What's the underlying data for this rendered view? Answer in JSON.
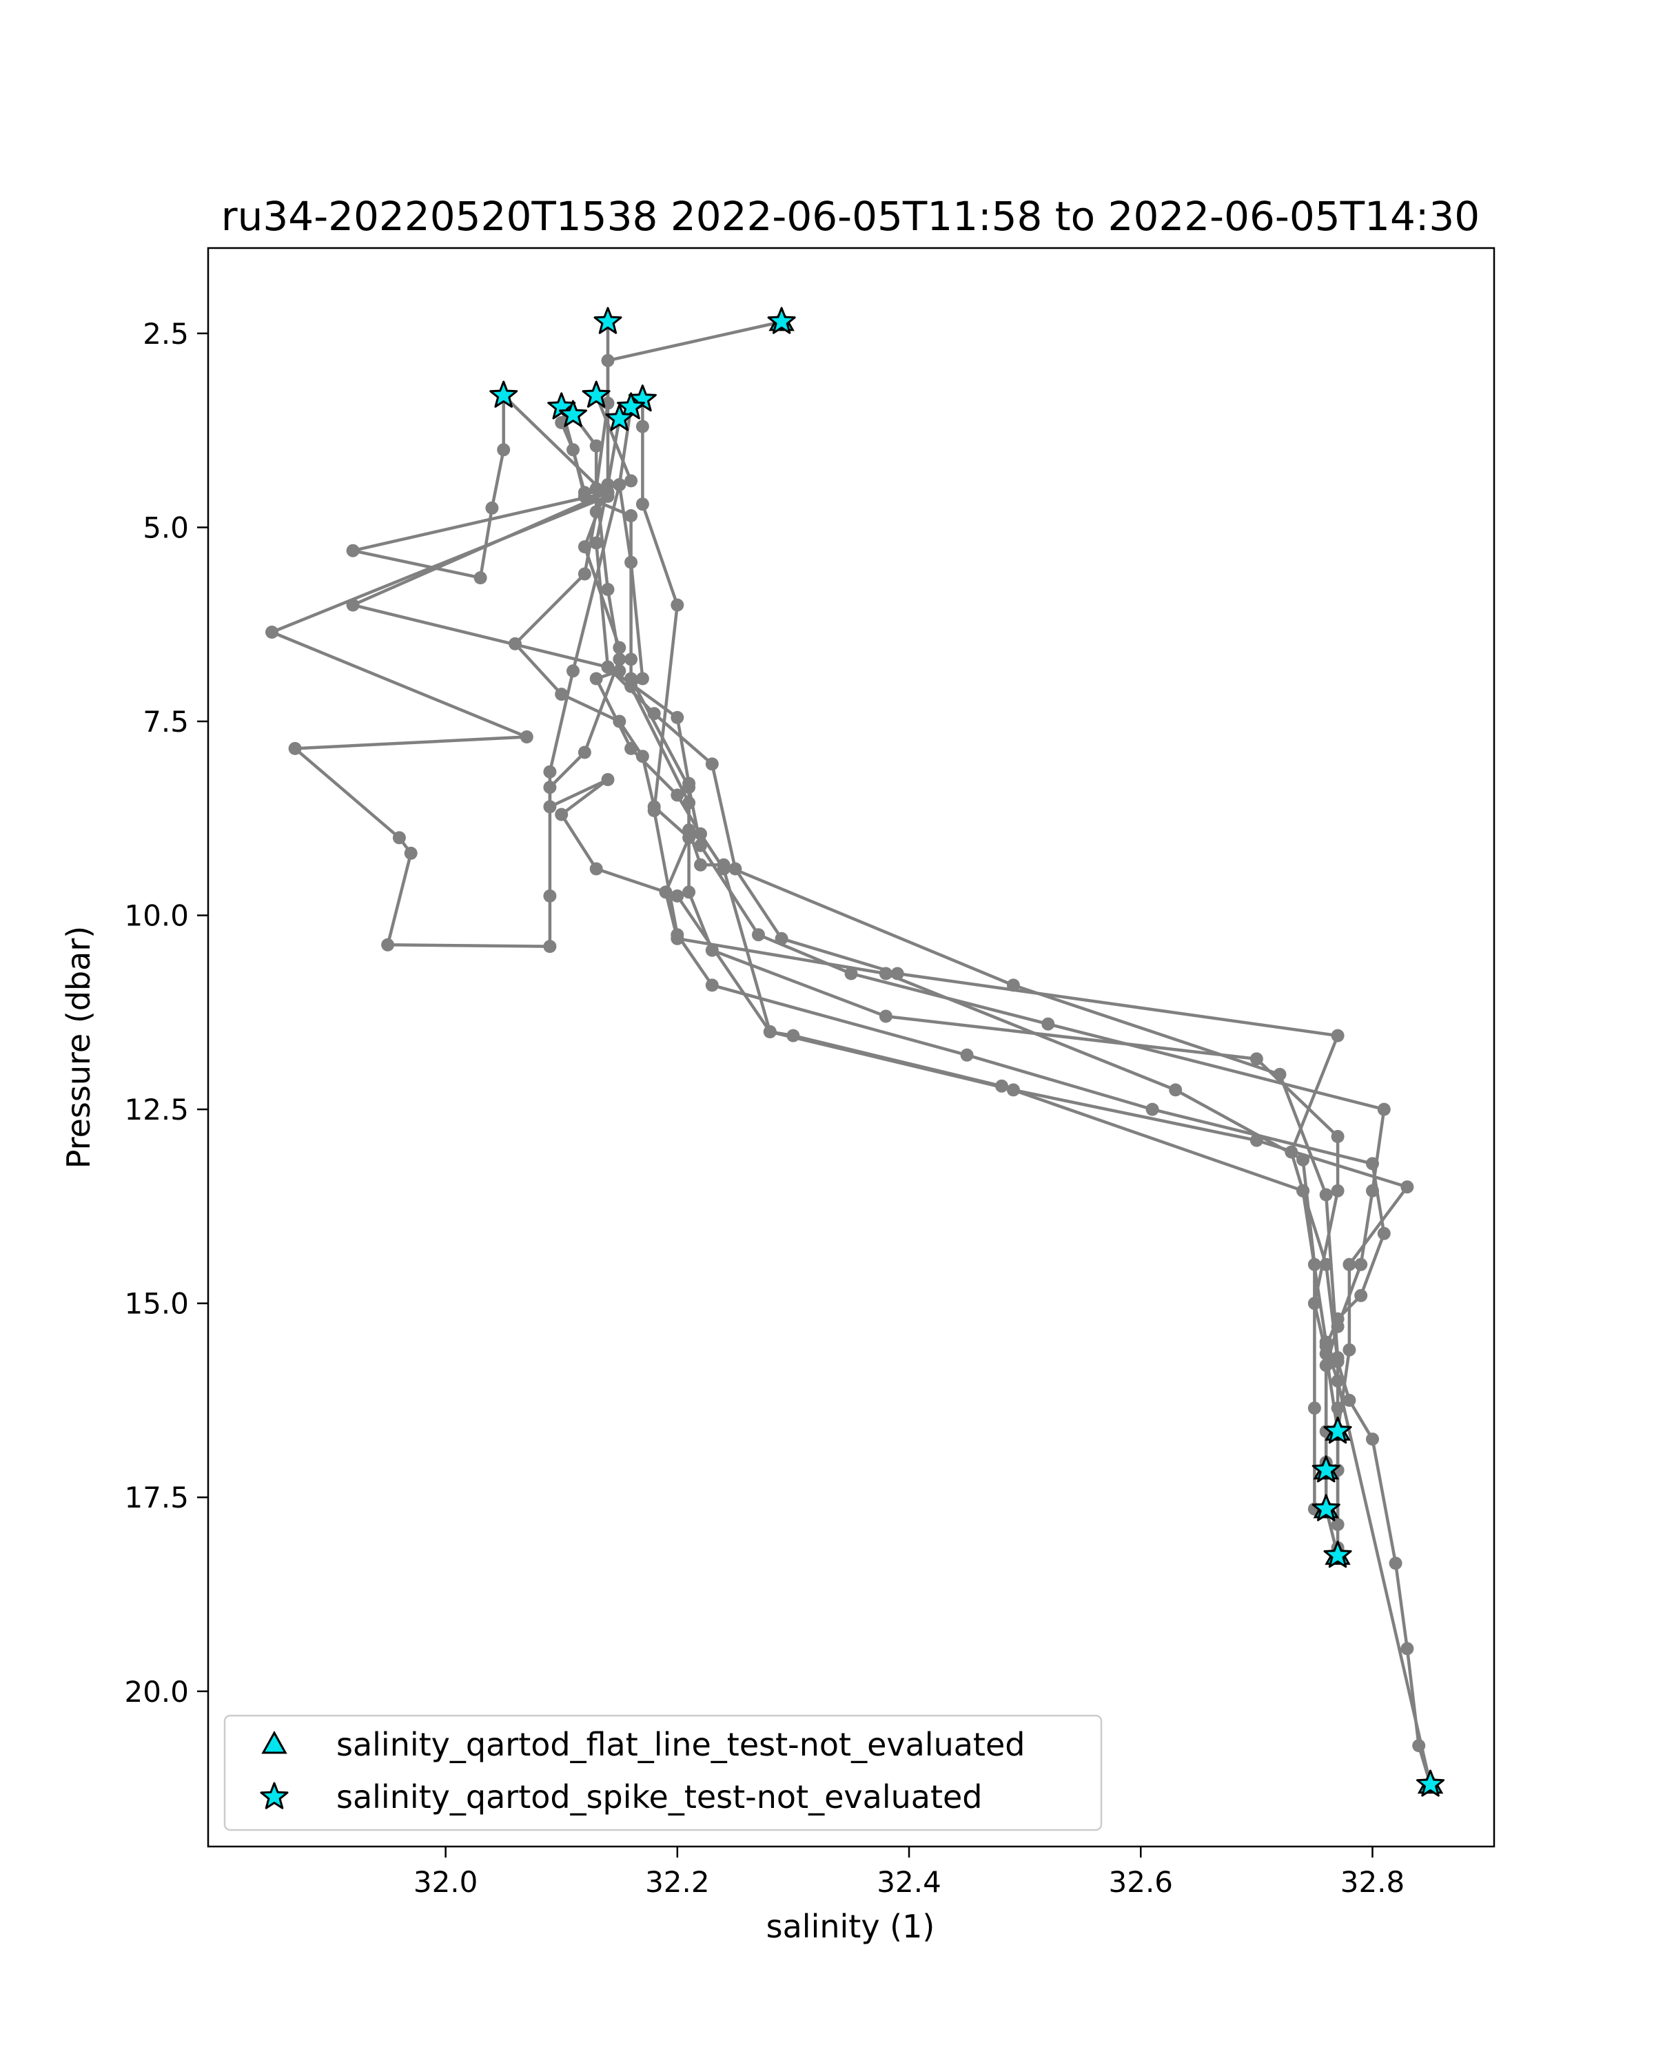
{
  "chart_data": {
    "type": "line",
    "title": "ru34-20220520T1538 2022-06-05T11:58 to 2022-06-05T14:30",
    "xlabel": "salinity (1)",
    "ylabel": "Pressure (dbar)",
    "xlim": [
      31.795,
      32.905
    ],
    "ylim": [
      22.0,
      1.4
    ],
    "y_inverted": true,
    "grid": false,
    "xticks": [
      "32.0",
      "32.2",
      "32.4",
      "32.6",
      "32.8"
    ],
    "yticks": [
      "2.5",
      "5.0",
      "7.5",
      "10.0",
      "12.5",
      "15.0",
      "17.5",
      "20.0"
    ],
    "colors": {
      "line": "#808080",
      "marker_fill": "#00e5ee",
      "marker_edge": "#000000"
    },
    "legend": {
      "placement": "lower-left",
      "entries": [
        {
          "label": "salinity_qartod_flat_line_test-not_evaluated",
          "marker": "triangle-icon"
        },
        {
          "label": "salinity_qartod_spike_test-not_evaluated",
          "marker": "star-icon"
        }
      ]
    },
    "profiles": [
      {
        "points": [
          [
            32.29,
            2.35
          ],
          [
            32.14,
            2.85
          ],
          [
            32.14,
            4.45
          ],
          [
            32.13,
            5.2
          ],
          [
            32.14,
            6.8
          ],
          [
            32.18,
            7.4
          ],
          [
            32.23,
            8.05
          ],
          [
            32.25,
            9.4
          ],
          [
            32.29,
            10.3
          ],
          [
            32.39,
            10.75
          ],
          [
            32.77,
            11.55
          ],
          [
            32.73,
            13.05
          ],
          [
            32.74,
            13.55
          ],
          [
            32.76,
            15.5
          ],
          [
            32.76,
            16.65
          ],
          [
            32.76,
            17.15
          ],
          [
            32.76,
            17.65
          ],
          [
            32.77,
            18.25
          ]
        ]
      },
      {
        "points": [
          [
            32.14,
            2.35
          ],
          [
            32.14,
            3.4
          ],
          [
            32.13,
            4.5
          ],
          [
            32.14,
            5.8
          ],
          [
            32.15,
            6.7
          ],
          [
            32.12,
            7.9
          ],
          [
            32.09,
            8.35
          ],
          [
            32.09,
            9.75
          ],
          [
            32.09,
            10.4
          ],
          [
            31.95,
            10.38
          ],
          [
            31.97,
            9.2
          ],
          [
            31.96,
            9.0
          ],
          [
            31.87,
            7.85
          ],
          [
            32.07,
            7.7
          ],
          [
            31.85,
            6.35
          ],
          [
            32.14,
            4.6
          ],
          [
            32.05,
            3.3
          ],
          [
            32.05,
            4.0
          ],
          [
            32.04,
            4.75
          ],
          [
            32.03,
            5.65
          ],
          [
            31.92,
            5.3
          ],
          [
            32.14,
            4.55
          ]
        ]
      },
      {
        "points": [
          [
            32.1,
            3.45
          ],
          [
            32.12,
            4.55
          ],
          [
            32.14,
            4.55
          ],
          [
            31.92,
            6.0
          ],
          [
            32.14,
            6.8
          ],
          [
            32.2,
            7.45
          ],
          [
            32.21,
            8.3
          ],
          [
            32.21,
            8.9
          ],
          [
            32.22,
            9.35
          ],
          [
            32.24,
            9.35
          ],
          [
            32.49,
            10.9
          ],
          [
            32.72,
            12.05
          ],
          [
            32.76,
            13.6
          ],
          [
            32.77,
            15.7
          ],
          [
            32.77,
            16.35
          ],
          [
            32.77,
            17.15
          ],
          [
            32.77,
            18.15
          ]
        ]
      },
      {
        "points": [
          [
            32.11,
            3.55
          ],
          [
            32.13,
            3.95
          ],
          [
            32.13,
            4.8
          ],
          [
            32.12,
            5.6
          ],
          [
            32.06,
            6.5
          ],
          [
            32.1,
            7.15
          ],
          [
            32.15,
            7.5
          ],
          [
            32.17,
            7.95
          ],
          [
            32.18,
            8.6
          ],
          [
            32.21,
            9.0
          ],
          [
            32.19,
            9.7
          ],
          [
            32.2,
            10.3
          ],
          [
            32.38,
            10.75
          ],
          [
            32.63,
            12.25
          ],
          [
            32.74,
            13.15
          ],
          [
            32.75,
            14.5
          ],
          [
            32.75,
            16.35
          ],
          [
            32.75,
            17.65
          ]
        ]
      },
      {
        "points": [
          [
            32.13,
            3.3
          ],
          [
            32.16,
            4.4
          ],
          [
            32.15,
            4.45
          ],
          [
            32.16,
            5.45
          ],
          [
            32.17,
            6.95
          ],
          [
            32.16,
            7.05
          ],
          [
            32.21,
            8.55
          ],
          [
            32.21,
            9.7
          ],
          [
            32.23,
            10.45
          ],
          [
            32.38,
            11.3
          ],
          [
            32.7,
            11.85
          ],
          [
            32.77,
            12.85
          ],
          [
            32.77,
            13.55
          ],
          [
            32.75,
            15.0
          ],
          [
            32.76,
            15.65
          ],
          [
            32.77,
            16.65
          ],
          [
            32.77,
            17.85
          ]
        ]
      },
      {
        "points": [
          [
            32.17,
            3.35
          ],
          [
            32.17,
            3.7
          ],
          [
            32.17,
            4.7
          ],
          [
            32.2,
            6.0
          ],
          [
            32.18,
            8.65
          ],
          [
            32.2,
            10.25
          ],
          [
            32.23,
            10.9
          ],
          [
            32.45,
            11.8
          ],
          [
            32.61,
            12.5
          ],
          [
            32.8,
            13.2
          ],
          [
            32.81,
            14.1
          ],
          [
            32.79,
            14.9
          ],
          [
            32.77,
            15.2
          ],
          [
            32.76,
            15.55
          ],
          [
            32.77,
            16.0
          ],
          [
            32.85,
            21.2
          ]
        ]
      },
      {
        "points": [
          [
            32.15,
            3.6
          ],
          [
            32.14,
            4.45
          ],
          [
            32.12,
            5.25
          ],
          [
            32.15,
            6.55
          ],
          [
            32.15,
            6.85
          ],
          [
            32.13,
            6.95
          ],
          [
            32.16,
            7.85
          ],
          [
            32.2,
            8.45
          ],
          [
            32.22,
            8.95
          ],
          [
            32.24,
            9.4
          ],
          [
            32.28,
            11.5
          ],
          [
            32.3,
            11.55
          ],
          [
            32.48,
            12.2
          ],
          [
            32.74,
            13.55
          ],
          [
            32.76,
            14.5
          ],
          [
            32.77,
            15.75
          ],
          [
            32.78,
            16.25
          ],
          [
            32.8,
            16.75
          ],
          [
            32.82,
            18.35
          ],
          [
            32.83,
            19.45
          ],
          [
            32.84,
            20.7
          ],
          [
            32.85,
            21.2
          ]
        ]
      },
      {
        "points": [
          [
            32.16,
            3.45
          ],
          [
            32.15,
            4.45
          ],
          [
            32.11,
            6.85
          ],
          [
            32.09,
            8.15
          ],
          [
            32.09,
            8.6
          ],
          [
            32.14,
            8.25
          ],
          [
            32.1,
            8.7
          ],
          [
            32.13,
            9.4
          ],
          [
            32.2,
            9.75
          ],
          [
            32.28,
            11.5
          ],
          [
            32.49,
            12.25
          ],
          [
            32.7,
            12.9
          ],
          [
            32.83,
            13.5
          ],
          [
            32.78,
            14.5
          ],
          [
            32.78,
            15.6
          ],
          [
            32.77,
            16.65
          ]
        ]
      },
      {
        "points": [
          [
            32.1,
            3.65
          ],
          [
            32.11,
            4.0
          ],
          [
            32.12,
            4.6
          ],
          [
            32.16,
            4.85
          ],
          [
            32.16,
            6.7
          ],
          [
            32.16,
            6.95
          ],
          [
            32.21,
            8.35
          ],
          [
            32.22,
            9.1
          ],
          [
            32.27,
            10.25
          ],
          [
            32.35,
            10.75
          ],
          [
            32.52,
            11.4
          ],
          [
            32.81,
            12.5
          ],
          [
            32.8,
            13.55
          ],
          [
            32.79,
            14.5
          ],
          [
            32.77,
            15.3
          ],
          [
            32.76,
            15.8
          ],
          [
            32.76,
            17.05
          ]
        ]
      }
    ],
    "flat_line_not_evaluated": [
      [
        32.29,
        2.35
      ],
      [
        32.85,
        21.2
      ],
      [
        32.77,
        16.65
      ],
      [
        32.76,
        17.15
      ],
      [
        32.76,
        17.65
      ],
      [
        32.77,
        18.25
      ]
    ],
    "spike_not_evaluated": [
      [
        32.29,
        2.35
      ],
      [
        32.14,
        2.35
      ],
      [
        32.05,
        3.3
      ],
      [
        32.13,
        3.3
      ],
      [
        32.17,
        3.35
      ],
      [
        32.16,
        3.45
      ],
      [
        32.1,
        3.45
      ],
      [
        32.11,
        3.55
      ],
      [
        32.15,
        3.6
      ],
      [
        32.85,
        21.2
      ],
      [
        32.77,
        16.65
      ],
      [
        32.76,
        17.15
      ],
      [
        32.76,
        17.65
      ],
      [
        32.77,
        18.25
      ]
    ]
  }
}
